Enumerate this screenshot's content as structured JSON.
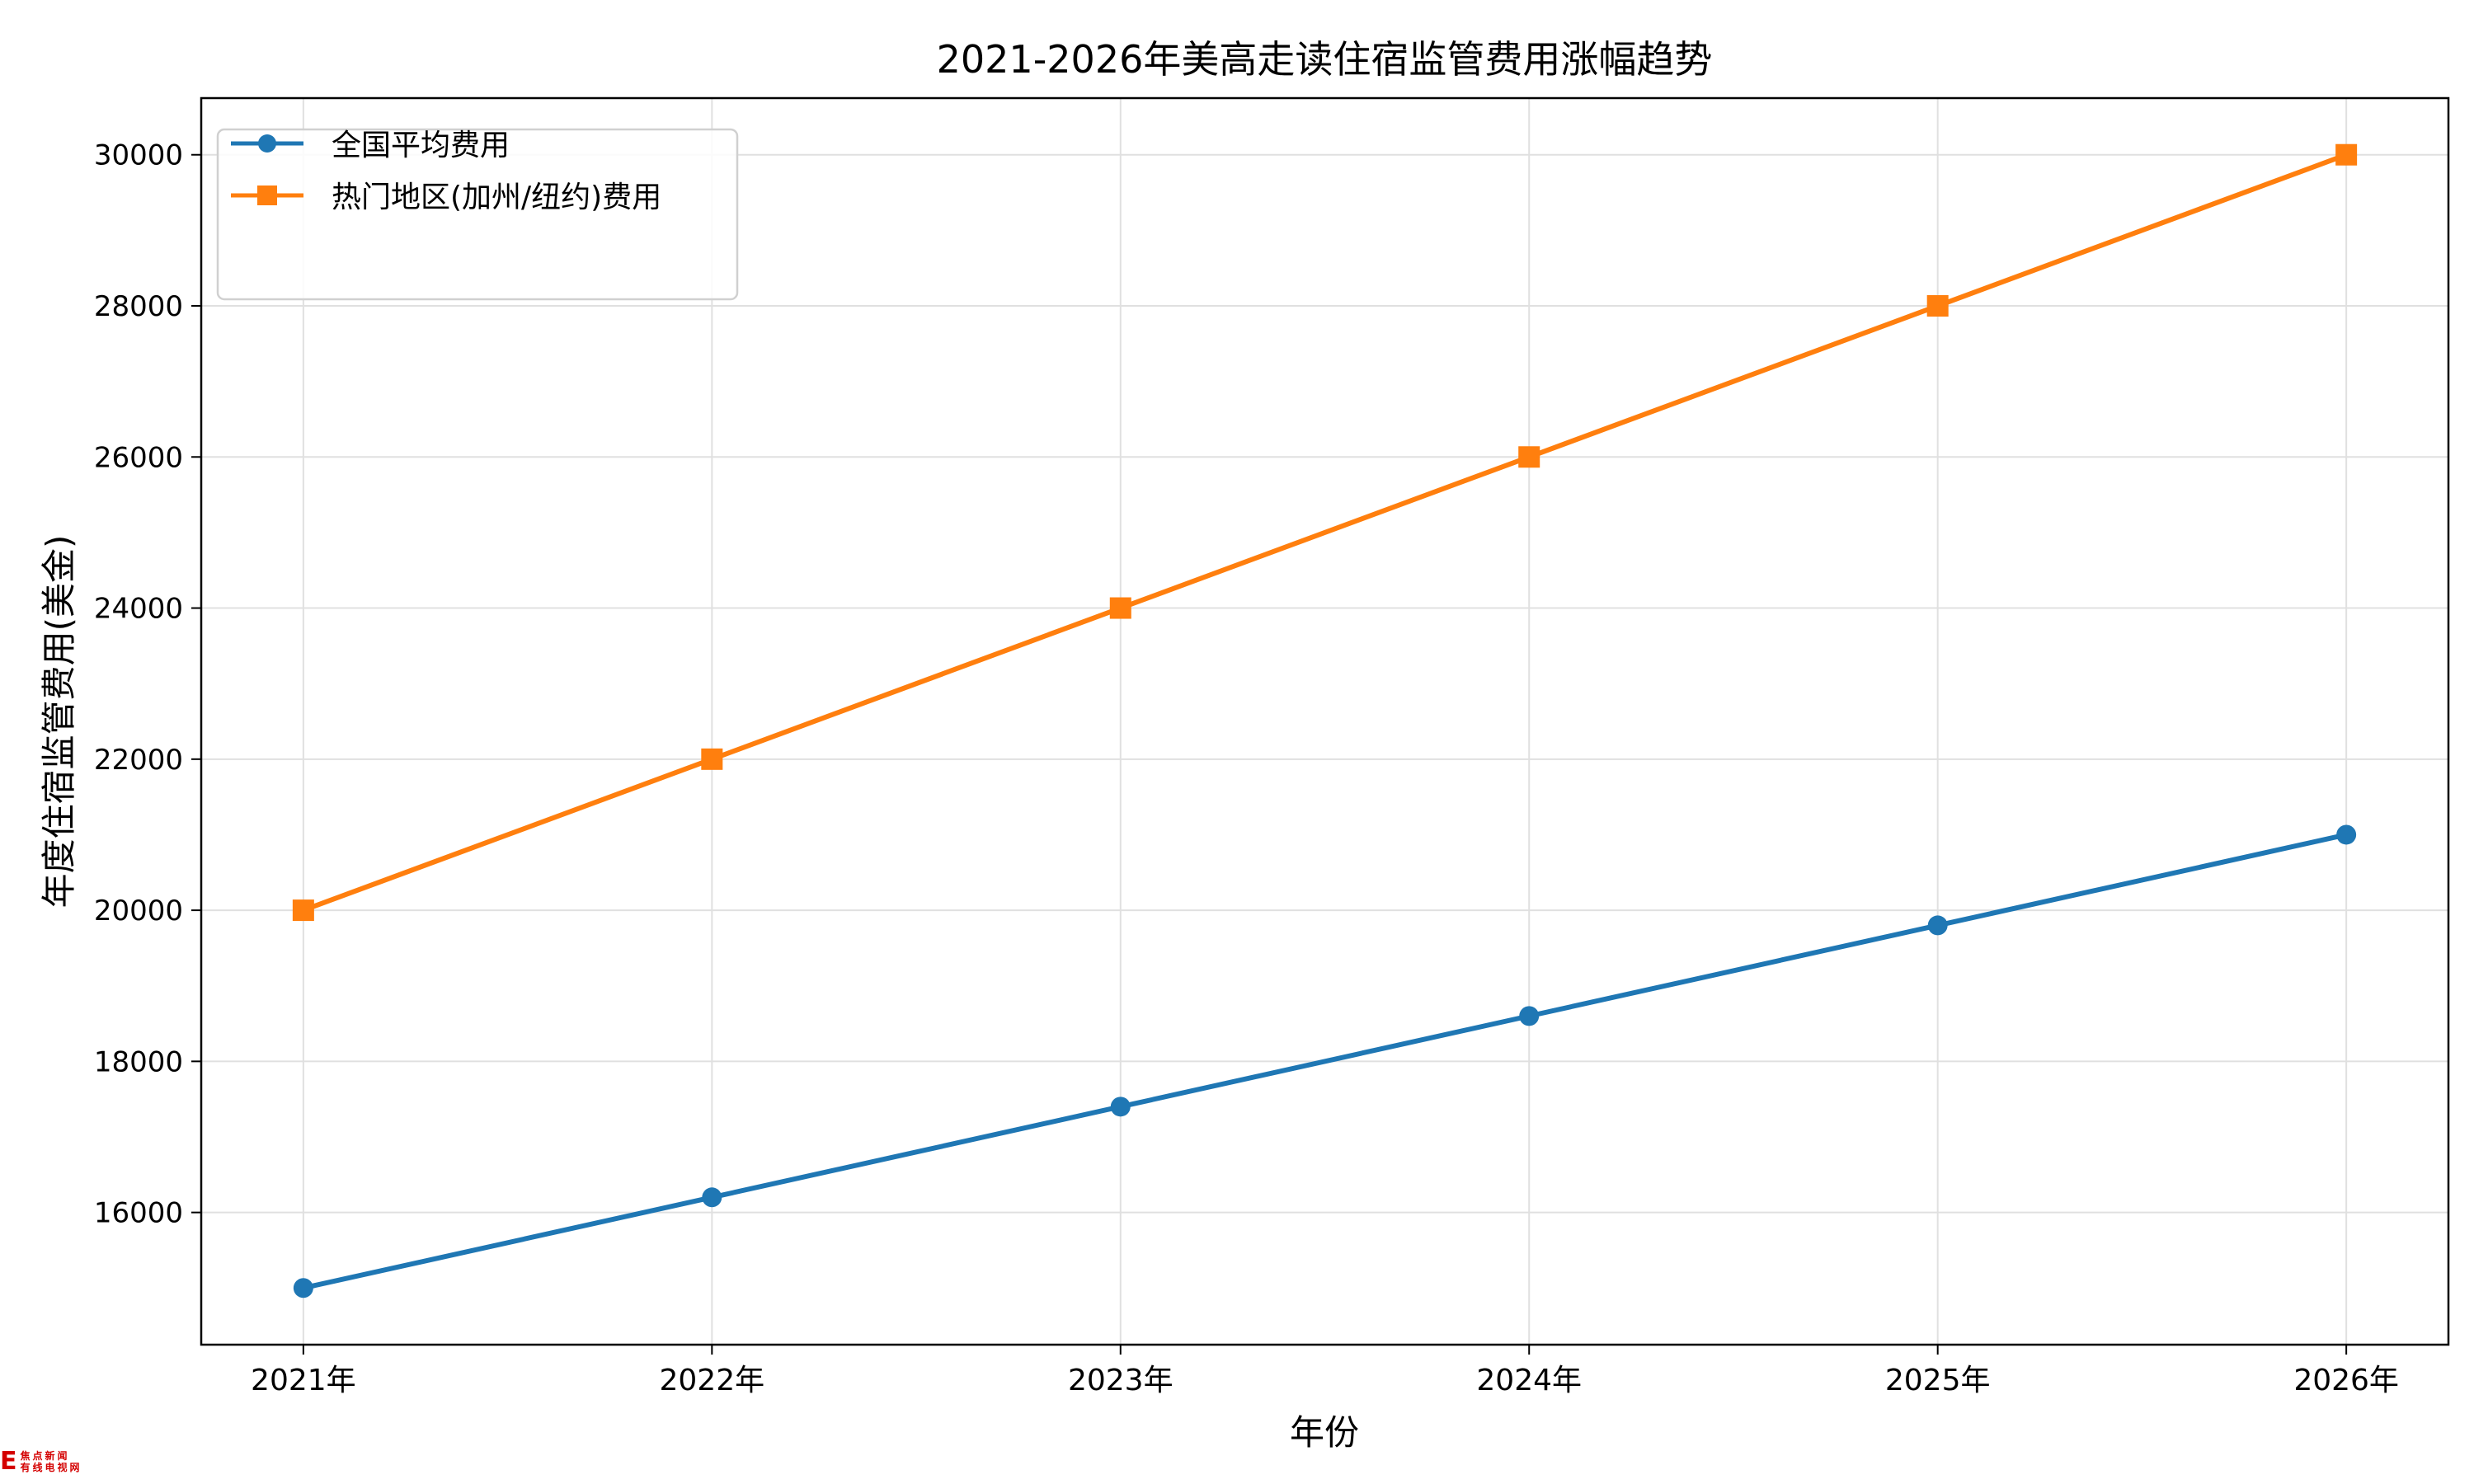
{
  "chart_data": {
    "type": "line",
    "title": "2021-2026年美高走读住宿监管费用涨幅趋势",
    "xlabel": "年份",
    "ylabel": "年度住宿监管费用(美金)",
    "categories": [
      "2021年",
      "2022年",
      "2023年",
      "2024年",
      "2025年",
      "2026年"
    ],
    "x": [
      2021,
      2022,
      2023,
      2024,
      2025,
      2026
    ],
    "series": [
      {
        "name": "全国平均费用",
        "values": [
          15000,
          16200,
          17400,
          18600,
          19800,
          21000
        ],
        "color": "#1f77b4",
        "marker": "circle"
      },
      {
        "name": "热门地区(加州/纽约)费用",
        "values": [
          20000,
          22000,
          24000,
          26000,
          28000,
          30000
        ],
        "color": "#ff7f0e",
        "marker": "square"
      }
    ],
    "yticks": [
      16000,
      18000,
      20000,
      22000,
      24000,
      26000,
      28000,
      30000
    ],
    "ylim": [
      14250,
      30750
    ],
    "xlim": [
      2020.75,
      2026.25
    ],
    "grid": true,
    "legend_position": "top-left"
  },
  "watermark": {
    "line1": "焦点新闻",
    "line2": "有线电视网"
  }
}
